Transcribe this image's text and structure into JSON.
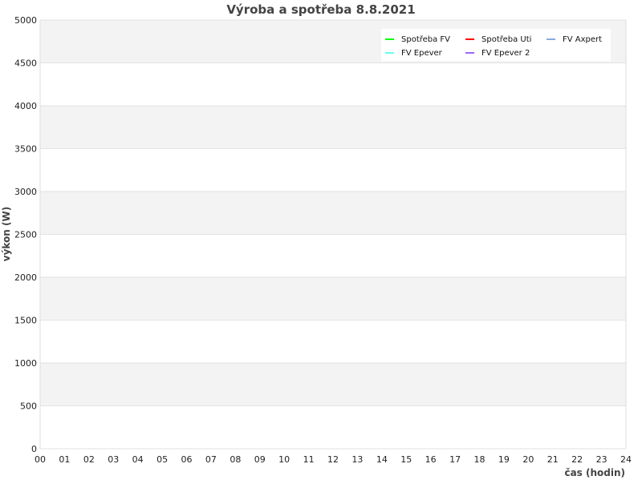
{
  "chart_data": {
    "type": "line",
    "title": "Výroba a spotřeba 8.8.2021",
    "xlabel": "čas (hodin)",
    "ylabel": "výkon (W)",
    "xlim": [
      0,
      24
    ],
    "ylim": [
      0,
      5000
    ],
    "x_ticks": [
      "00",
      "01",
      "02",
      "03",
      "04",
      "05",
      "06",
      "07",
      "08",
      "09",
      "10",
      "11",
      "12",
      "13",
      "14",
      "15",
      "16",
      "17",
      "18",
      "19",
      "20",
      "21",
      "22",
      "23",
      "24"
    ],
    "y_ticks": [
      0,
      500,
      1000,
      1500,
      2000,
      2500,
      3000,
      3500,
      4000,
      4500,
      5000
    ],
    "grid": true,
    "legend_position": "top-right",
    "series": [
      {
        "name": "Spotřeba FV",
        "color": "#00ff00",
        "values": []
      },
      {
        "name": "Spotřeba Uti",
        "color": "#ff0000",
        "values": []
      },
      {
        "name": "FV Axpert",
        "color": "#88aadd",
        "values": []
      },
      {
        "name": "FV Epever",
        "color": "#66ffee",
        "values": []
      },
      {
        "name": "FV Epever 2",
        "color": "#9966ff",
        "values": []
      }
    ]
  }
}
